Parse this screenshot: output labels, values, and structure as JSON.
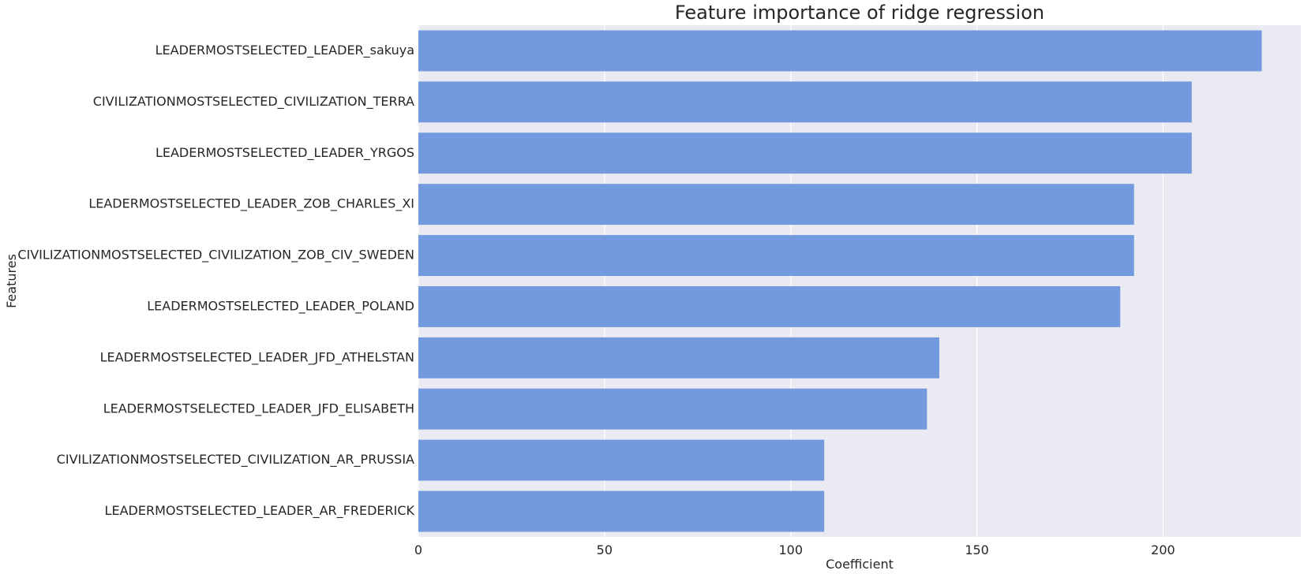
{
  "chart_data": {
    "type": "bar",
    "orientation": "horizontal",
    "title": "Feature importance of ridge regression",
    "xlabel": "Coefficient",
    "ylabel": "Features",
    "xlim": [
      0,
      237
    ],
    "xticks": [
      0,
      50,
      100,
      150,
      200
    ],
    "grid": true,
    "bar_color": "#739ADE",
    "background_color": "#EAEAF2",
    "categories": [
      "LEADERMOSTSELECTED_LEADER_sakuya",
      "CIVILIZATIONMOSTSELECTED_CIVILIZATION_TERRA",
      "LEADERMOSTSELECTED_LEADER_YRGOS",
      "LEADERMOSTSELECTED_LEADER_ZOB_CHARLES_XI",
      "CIVILIZATIONMOSTSELECTED_CIVILIZATION_ZOB_CIV_SWEDEN",
      "LEADERMOSTSELECTED_LEADER_POLAND",
      "LEADERMOSTSELECTED_LEADER_JFD_ATHELSTAN",
      "LEADERMOSTSELECTED_LEADER_JFD_ELISABETH",
      "CIVILIZATIONMOSTSELECTED_CIVILIZATION_AR_PRUSSIA",
      "LEADERMOSTSELECTED_LEADER_AR_FREDERICK"
    ],
    "values": [
      226.5,
      207.7,
      207.7,
      192.2,
      192.2,
      188.5,
      139.9,
      136.6,
      109.0,
      109.0
    ]
  }
}
